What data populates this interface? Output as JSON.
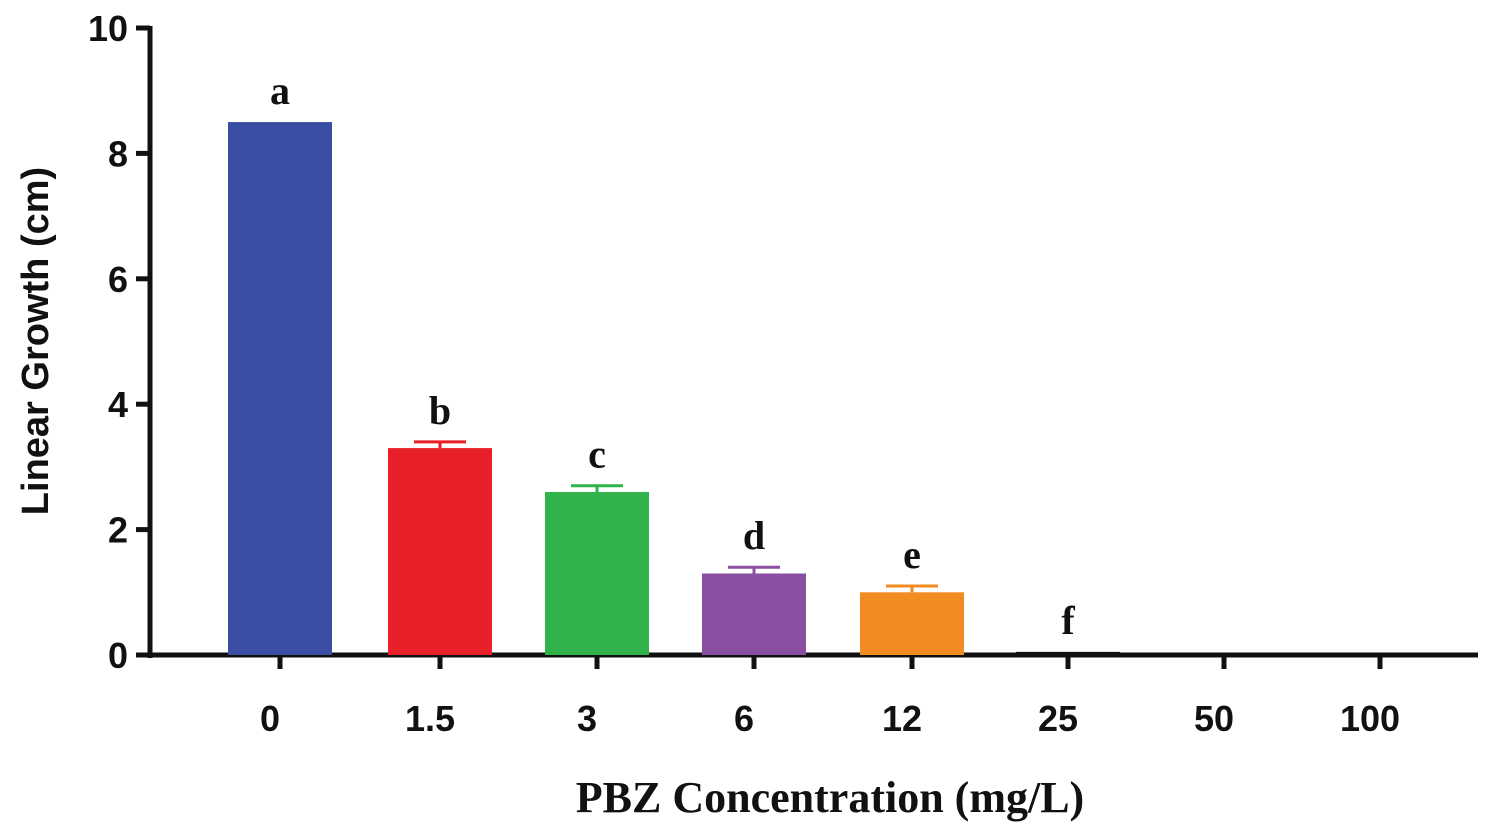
{
  "chart_data": {
    "type": "bar",
    "title": "",
    "xlabel": "PBZ Concentration (mg/L)",
    "ylabel": "Linear Growth (cm)",
    "ylim": [
      0,
      10
    ],
    "yticks": [
      0,
      2,
      4,
      6,
      8,
      10
    ],
    "categories": [
      "0",
      "1.5",
      "3",
      "6",
      "12",
      "25",
      "50",
      "100"
    ],
    "values": [
      8.5,
      3.3,
      2.6,
      1.3,
      1.0,
      0.05,
      0,
      0
    ],
    "errors": [
      0,
      0.1,
      0.1,
      0.1,
      0.1,
      0,
      0,
      0
    ],
    "significance_letters": [
      "a",
      "b",
      "c",
      "d",
      "e",
      "f",
      "",
      ""
    ],
    "colors": [
      "#3a4fa3",
      "#e8202a",
      "#2fb34a",
      "#8a4fa0",
      "#f28b22",
      "#111111",
      "#111111",
      "#111111"
    ],
    "grid": false,
    "legend": "none"
  }
}
